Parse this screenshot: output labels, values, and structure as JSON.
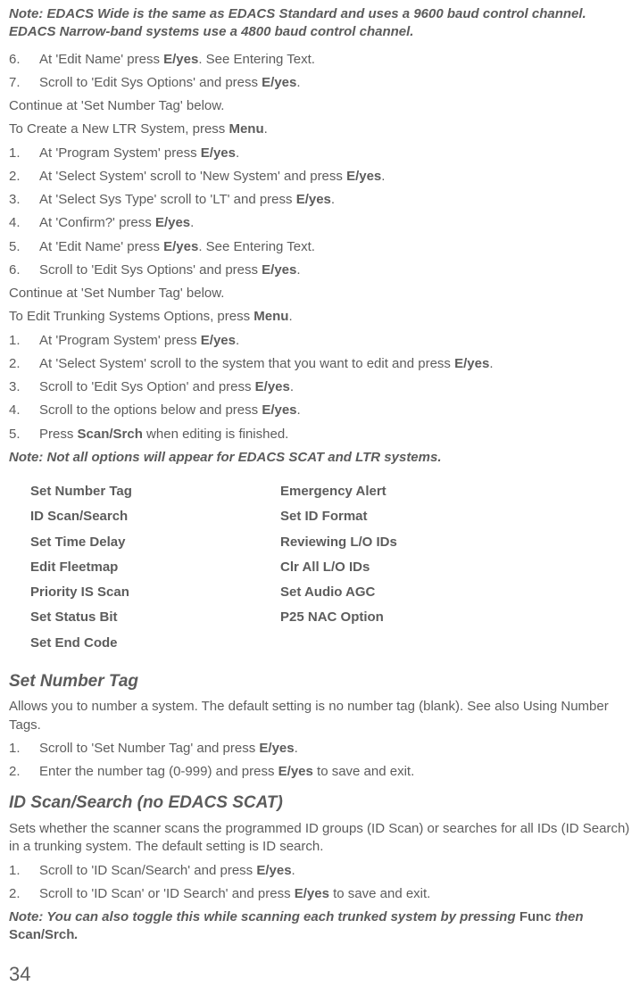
{
  "note1": "Note: EDACS Wide is the same as EDACS Standard and uses a 9600 baud control channel. EDACS Narrow-band systems use a 4800 baud control channel.",
  "firstList": [
    {
      "n": "6.",
      "pre": "At 'Edit Name' press ",
      "bold": "E/yes",
      "post": ". See Entering Text."
    },
    {
      "n": "7.",
      "pre": "Scroll to 'Edit Sys Options' and press ",
      "bold": "E/yes",
      "post": "."
    }
  ],
  "para1": "Continue at 'Set Number Tag' below.",
  "para2_pre": "To Create a New LTR System, press ",
  "para2_bold": "Menu",
  "para2_post": ".",
  "list2": [
    {
      "n": "1.",
      "pre": "At 'Program System' press ",
      "bold": "E/yes",
      "post": "."
    },
    {
      "n": "2.",
      "pre": "At 'Select System' scroll to 'New System' and press ",
      "bold": "E/yes",
      "post": "."
    },
    {
      "n": "3.",
      "pre": "At 'Select Sys Type' scroll to 'LT' and press ",
      "bold": "E/yes",
      "post": "."
    },
    {
      "n": "4.",
      "pre": "At 'Confirm?' press ",
      "bold": "E/yes",
      "post": "."
    },
    {
      "n": "5.",
      "pre": "At 'Edit Name' press ",
      "bold": "E/yes",
      "post": ". See Entering Text."
    },
    {
      "n": "6.",
      "pre": "Scroll to 'Edit Sys Options' and press ",
      "bold": "E/yes",
      "post": "."
    }
  ],
  "para3": "Continue at 'Set Number Tag' below.",
  "para4_pre": "To Edit Trunking Systems Options, press ",
  "para4_bold": "Menu",
  "para4_post": ".",
  "list3": [
    {
      "n": "1.",
      "pre": "At 'Program System' press ",
      "bold": "E/yes",
      "post": "."
    },
    {
      "n": "2.",
      "pre": "At 'Select System' scroll to the system that you want to edit and press ",
      "bold": "E/yes",
      "post": "."
    },
    {
      "n": "3.",
      "pre": "Scroll to 'Edit Sys Option' and press ",
      "bold": "E/yes",
      "post": "."
    },
    {
      "n": "4.",
      "pre": "Scroll to the options below and press ",
      "bold": "E/yes",
      "post": "."
    },
    {
      "n": "5.",
      "pre": "Press ",
      "bold": "Scan/Srch",
      "post": " when editing is finished."
    }
  ],
  "note2": "Note: Not all options will appear for EDACS SCAT and LTR systems.",
  "options": {
    "left": [
      "Set Number Tag",
      "ID Scan/Search",
      "Set Time Delay",
      "Edit Fleetmap",
      "Priority IS Scan",
      "Set Status Bit",
      "Set End Code"
    ],
    "right": [
      "Emergency Alert",
      "Set ID Format",
      "Reviewing L/O IDs",
      "Clr All L/O IDs",
      "Set Audio AGC",
      "P25 NAC Option"
    ]
  },
  "sec1": {
    "title": "Set Number Tag",
    "desc": "Allows you to number a system. The default setting is no number tag (blank).  See also Using Number Tags.",
    "steps": [
      {
        "n": "1.",
        "pre": "Scroll to 'Set Number Tag' and press ",
        "bold": "E/yes",
        "post": "."
      },
      {
        "n": "2.",
        "pre": "Enter the number tag (0-999) and press ",
        "bold": "E/yes",
        "post": " to save and exit."
      }
    ]
  },
  "sec2": {
    "title": "ID Scan/Search (no EDACS SCAT)",
    "desc": "Sets whether the scanner scans the programmed ID groups (ID Scan) or searches for all IDs (ID Search) in a trunking system. The default setting is ID search.",
    "steps": [
      {
        "n": "1.",
        "pre": "Scroll to 'ID Scan/Search' and press ",
        "bold": "E/yes",
        "post": "."
      },
      {
        "n": "2.",
        "pre": "Scroll to 'ID Scan' or 'ID Search' and press ",
        "bold": "E/yes",
        "post": " to save and exit."
      }
    ]
  },
  "note3_pre": "Note: You can also toggle this while scanning each trunked system by pressing ",
  "note3_b1": "Func",
  "note3_mid": " then ",
  "note3_b2": "Scan/Srch",
  "note3_post": ".",
  "pageNumber": "34"
}
